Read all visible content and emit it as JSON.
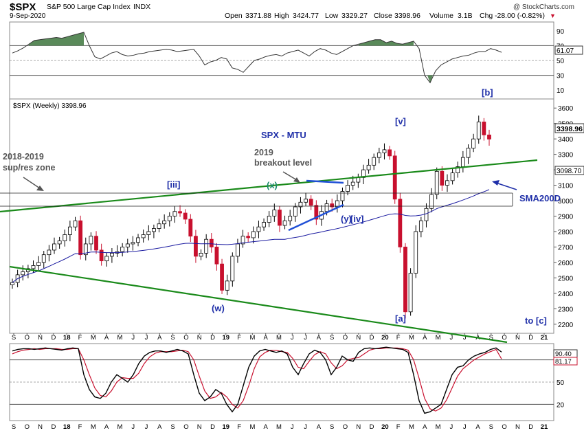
{
  "header": {
    "symbol": "$SPX",
    "name": "S&P 500 Large Cap Index",
    "exchange": "INDX",
    "date": "9-Sep-2020",
    "watermark": "@ StockCharts.com",
    "open_label": "Open",
    "open": "3371.88",
    "high_label": "High",
    "high": "3424.77",
    "low_label": "Low",
    "low": "3329.27",
    "close_label": "Close",
    "close": "3398.96",
    "volume_label": "Volume",
    "volume": "3.1B",
    "chg_label": "Chg",
    "chg": "-28.00 (-0.82%)",
    "chg_marker": "▼"
  },
  "colors": {
    "up": "#000000",
    "down": "#c8102e",
    "sma": "#1a1aa0",
    "trendline": "#1a8a1a",
    "wave_label": "#1f2fa8",
    "annotation": "#555555",
    "ma_blue": "#1f4fd6",
    "rsi_fill": "#5a8a5a"
  },
  "chart_data": [
    {
      "type": "line",
      "name": "RSI(14) weekly",
      "ylim": [
        0,
        100
      ],
      "yticks": [
        10,
        30,
        50,
        70,
        90
      ],
      "reference_lines": [
        30,
        50,
        70
      ],
      "last_value": "61.07",
      "x": [
        0,
        8,
        16,
        24,
        32,
        40,
        48,
        56,
        64,
        72,
        80,
        88,
        96,
        104,
        112,
        120,
        128,
        136,
        144,
        152,
        160,
        168,
        176,
        184,
        192,
        200,
        208,
        216,
        224,
        232,
        240,
        248,
        256,
        264,
        272,
        280,
        288,
        296,
        304,
        312,
        320,
        328,
        336,
        344,
        352,
        360,
        368,
        376,
        384,
        392,
        400,
        408,
        416,
        424,
        432,
        440,
        448,
        456,
        464,
        472,
        480,
        488,
        496,
        504,
        512,
        520,
        528,
        536,
        544,
        552,
        560,
        568,
        576,
        584,
        592,
        600,
        608,
        616,
        624,
        632,
        640,
        648,
        656,
        664,
        672,
        680,
        688,
        696,
        704,
        712
      ],
      "values": [
        60,
        63,
        67,
        72,
        77,
        78,
        79,
        80,
        81,
        80,
        82,
        84,
        86,
        88,
        70,
        55,
        52,
        56,
        60,
        62,
        58,
        56,
        57,
        59,
        60,
        62,
        63,
        64,
        65,
        64,
        62,
        63,
        64,
        65,
        56,
        44,
        48,
        50,
        54,
        52,
        40,
        38,
        34,
        42,
        50,
        52,
        55,
        57,
        58,
        56,
        60,
        62,
        64,
        60,
        56,
        62,
        66,
        64,
        60,
        58,
        62,
        66,
        70,
        72,
        74,
        76,
        78,
        78,
        74,
        76,
        73,
        72,
        74,
        76,
        66,
        30,
        20,
        36,
        44,
        48,
        52,
        54,
        56,
        57,
        60,
        62,
        62,
        66,
        64,
        61
      ]
    },
    {
      "type": "candlestick",
      "name": "$SPX (Weekly) 3398.96",
      "ylim": [
        2150,
        3650
      ],
      "yticks": [
        2200,
        2300,
        2400,
        2500,
        2600,
        2700,
        2800,
        2900,
        3000,
        3100,
        3200,
        3300,
        3400,
        3500,
        3600
      ],
      "x_tick_labels": [
        "S",
        "O",
        "N",
        "D",
        "18",
        "F",
        "M",
        "A",
        "M",
        "J",
        "J",
        "A",
        "S",
        "O",
        "N",
        "D",
        "19",
        "F",
        "M",
        "A",
        "M",
        "J",
        "J",
        "A",
        "S",
        "O",
        "N",
        "D",
        "20",
        "F",
        "M",
        "A",
        "M",
        "J",
        "J",
        "A",
        "S",
        "O",
        "N",
        "D",
        "21"
      ],
      "closes": [
        2470,
        2520,
        2540,
        2560,
        2580,
        2600,
        2650,
        2680,
        2720,
        2740,
        2780,
        2830,
        2870,
        2650,
        2720,
        2770,
        2680,
        2610,
        2640,
        2660,
        2670,
        2700,
        2720,
        2730,
        2760,
        2780,
        2800,
        2820,
        2850,
        2870,
        2900,
        2930,
        2920,
        2880,
        2770,
        2640,
        2660,
        2750,
        2700,
        2590,
        2420,
        2480,
        2640,
        2720,
        2770,
        2760,
        2800,
        2830,
        2860,
        2900,
        2940,
        2840,
        2870,
        2900,
        2960,
        2990,
        3010,
        2970,
        2880,
        2930,
        2980,
        2960,
        3000,
        3060,
        3100,
        3120,
        3150,
        3200,
        3230,
        3280,
        3310,
        3330,
        3290,
        3010,
        2700,
        2280,
        2530,
        2800,
        2870,
        2950,
        3040,
        3190,
        3100,
        3130,
        3180,
        3220,
        3280,
        3340,
        3400,
        3510,
        3426,
        3398.96
      ],
      "sma200_last": "3098.70",
      "last_close": "3398.96",
      "support_zone": [
        2880,
        2960
      ],
      "wave_labels": [
        "[iii]",
        "(x)",
        "(w)",
        "(y)",
        "[iv]",
        "[v]",
        "[a]",
        "[b]",
        "to [c]"
      ],
      "annotations": [
        "SPX - MTU",
        "2019",
        "breakout level",
        "2018-2019",
        "sup/res zone",
        "SMA200D"
      ]
    },
    {
      "type": "line",
      "name": "Stochastic (weekly)",
      "ylim": [
        0,
        100
      ],
      "yticks": [
        20,
        50,
        80
      ],
      "last_values": [
        "90.40",
        "81.17"
      ],
      "x": [
        0,
        8,
        16,
        24,
        32,
        40,
        48,
        56,
        64,
        72,
        80,
        88,
        96,
        104,
        112,
        120,
        128,
        136,
        144,
        152,
        160,
        168,
        176,
        184,
        192,
        200,
        208,
        216,
        224,
        232,
        240,
        248,
        256,
        264,
        272,
        280,
        288,
        296,
        304,
        312,
        320,
        328,
        336,
        344,
        352,
        360,
        368,
        376,
        384,
        392,
        400,
        408,
        416,
        424,
        432,
        440,
        448,
        456,
        464,
        472,
        480,
        488,
        496,
        504,
        512,
        520,
        528,
        536,
        544,
        552,
        560,
        568,
        576,
        584,
        592,
        600,
        608,
        616,
        624,
        632,
        640,
        648,
        656,
        664,
        672,
        680,
        688,
        696,
        704,
        712
      ],
      "series": [
        {
          "name": "%K",
          "values": [
            92,
            94,
            95,
            95,
            94,
            95,
            96,
            95,
            94,
            93,
            95,
            96,
            95,
            60,
            40,
            30,
            28,
            35,
            50,
            60,
            55,
            50,
            60,
            75,
            85,
            90,
            92,
            92,
            90,
            92,
            94,
            92,
            88,
            60,
            35,
            25,
            30,
            40,
            35,
            20,
            10,
            20,
            45,
            70,
            85,
            92,
            94,
            92,
            90,
            92,
            88,
            70,
            60,
            75,
            88,
            93,
            90,
            80,
            60,
            70,
            85,
            80,
            78,
            90,
            95,
            96,
            95,
            96,
            97,
            96,
            95,
            94,
            90,
            60,
            25,
            8,
            10,
            15,
            20,
            40,
            60,
            70,
            72,
            80,
            85,
            88,
            90,
            94,
            96,
            90.4
          ]
        },
        {
          "name": "%D",
          "values": [
            88,
            91,
            93,
            94,
            95,
            94,
            95,
            95,
            95,
            94,
            94,
            95,
            95,
            80,
            60,
            42,
            32,
            30,
            38,
            50,
            56,
            55,
            55,
            62,
            75,
            84,
            89,
            91,
            91,
            91,
            92,
            93,
            91,
            80,
            58,
            38,
            28,
            30,
            36,
            30,
            20,
            15,
            25,
            45,
            68,
            84,
            90,
            93,
            93,
            91,
            90,
            82,
            70,
            68,
            78,
            87,
            91,
            88,
            76,
            68,
            72,
            80,
            82,
            83,
            88,
            93,
            95,
            95,
            96,
            96,
            96,
            95,
            93,
            80,
            55,
            28,
            14,
            11,
            15,
            26,
            42,
            58,
            68,
            74,
            80,
            84,
            88,
            91,
            94,
            81.17
          ]
        }
      ]
    }
  ]
}
